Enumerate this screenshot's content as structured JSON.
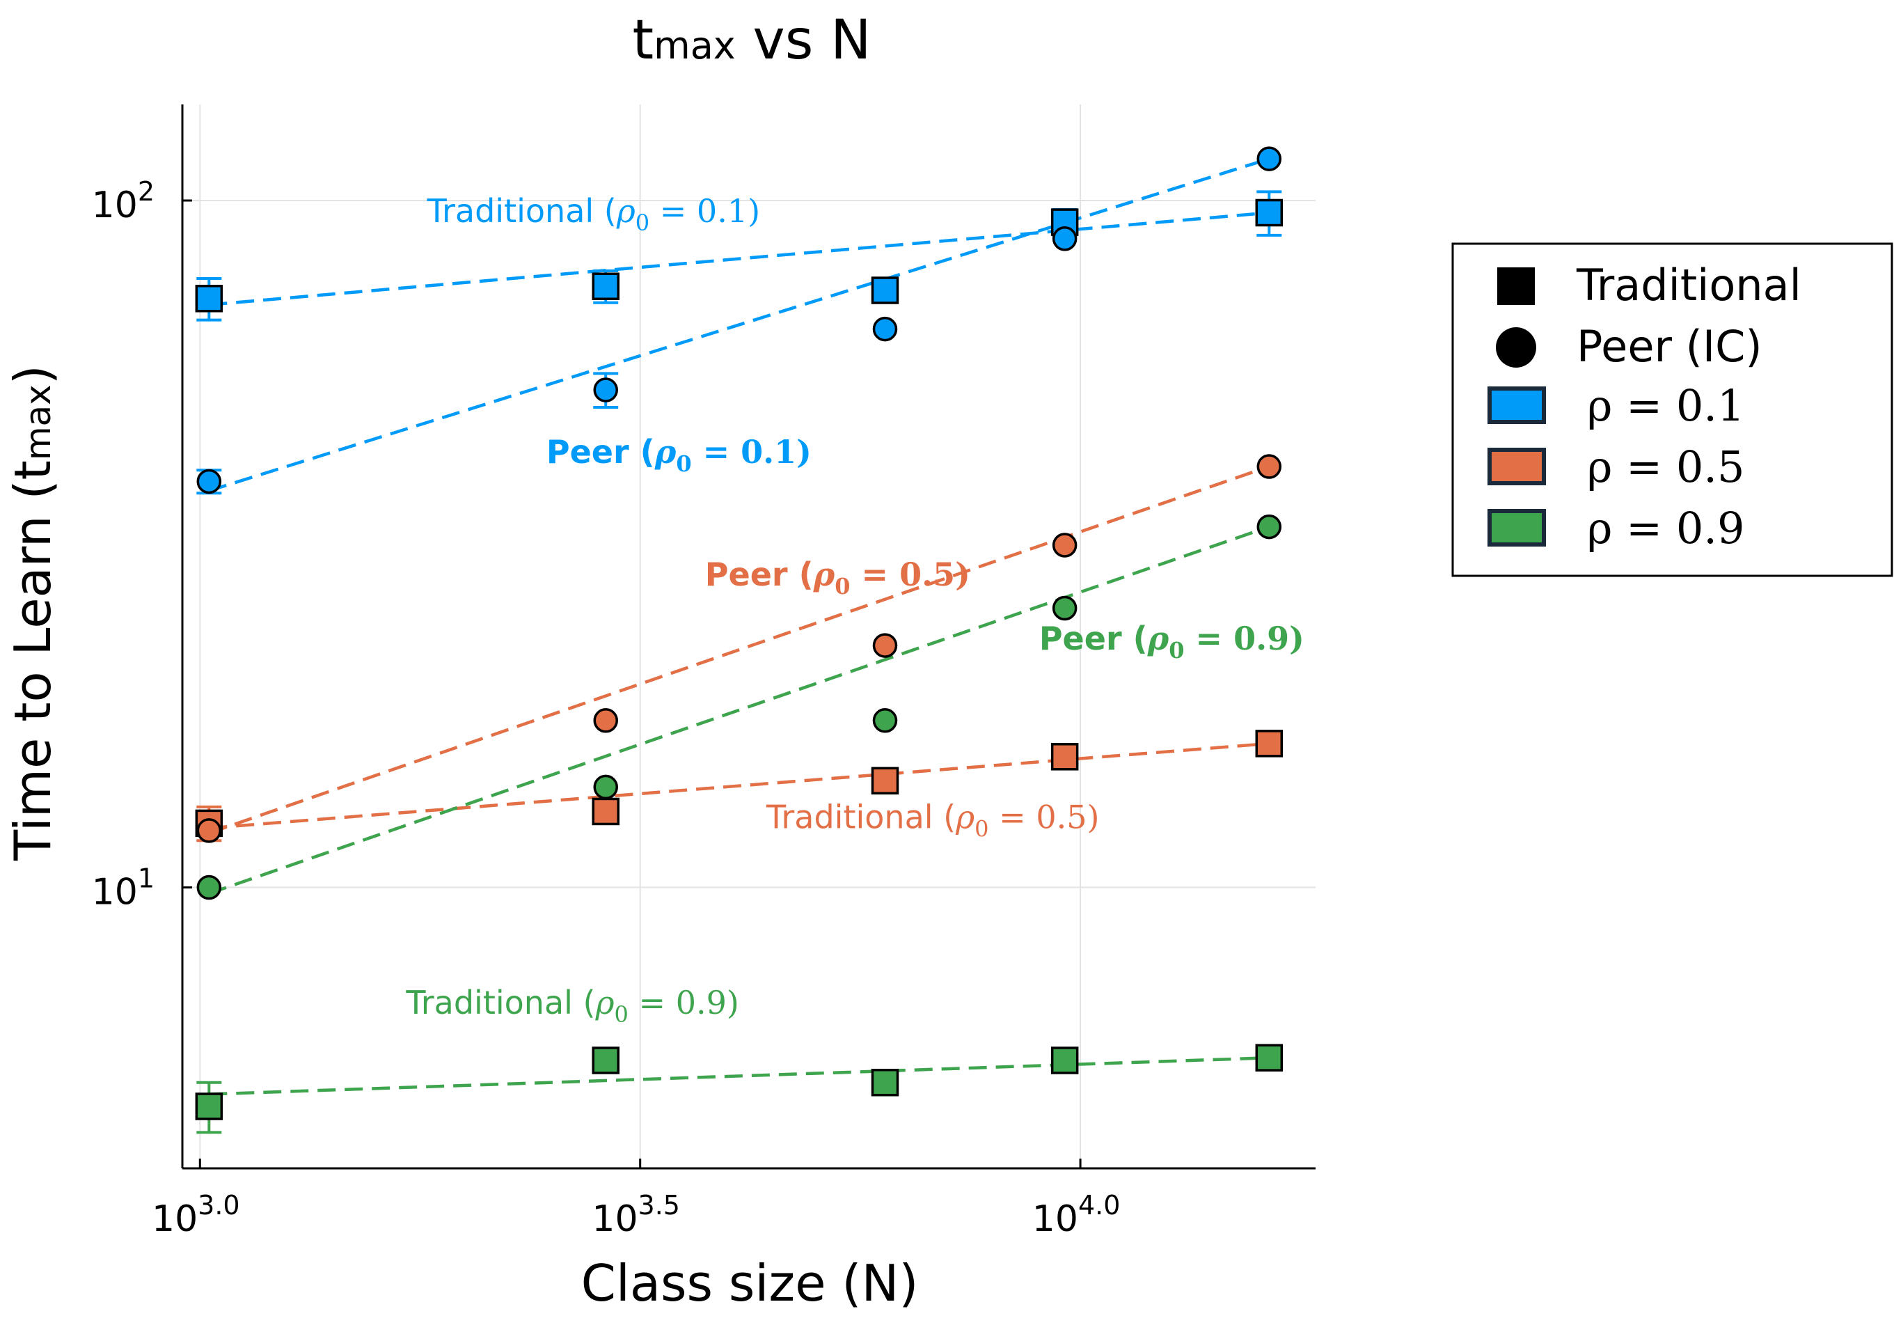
{
  "chart_data": {
    "type": "scatter",
    "title_main": "t",
    "title_sub": "max",
    "title_rest": " vs N",
    "xlabel": "Class size (N)",
    "ylabel_main": "Time to Learn (t",
    "ylabel_sub": "max",
    "ylabel_end": ")",
    "x_scale": "log10",
    "y_scale": "log10",
    "xlim": [
      955,
      18500
    ],
    "ylim": [
      3.9,
      138
    ],
    "x_ticks": [
      {
        "value": 1000,
        "base": "10",
        "exp": "3.0"
      },
      {
        "value": 3162.28,
        "base": "10",
        "exp": "3.5"
      },
      {
        "value": 10000,
        "base": "10",
        "exp": "4.0"
      }
    ],
    "y_ticks": [
      {
        "value": 10,
        "base": "10",
        "exp": "1"
      },
      {
        "value": 100,
        "base": "10",
        "exp": "2"
      }
    ],
    "grid": true,
    "legend_position": "right",
    "legend": {
      "markers": [
        {
          "shape": "square",
          "label": "Traditional"
        },
        {
          "shape": "circle",
          "label": "Peer (IC)"
        }
      ],
      "colors": [
        {
          "color": "#009AF9",
          "label": "ρ = 0.1"
        },
        {
          "color": "#E26F46",
          "label": "ρ = 0.5"
        },
        {
          "color": "#3EA44E",
          "label": "ρ = 0.9"
        }
      ]
    },
    "series": [
      {
        "name": "Traditional (ρ₀ = 0.1)",
        "marker": "square",
        "color": "#009AF9",
        "x": [
          1024,
          2890,
          6000,
          9600,
          16384
        ],
        "y": [
          72,
          75,
          74,
          93,
          96
        ],
        "err": [
          5,
          4,
          2,
          4,
          7
        ],
        "fit": {
          "x": [
            1024,
            16384
          ],
          "y": [
            70.5,
            96
          ]
        },
        "annotation": {
          "pre": "Traditional (",
          "sym": "ρ",
          "sub": "0",
          "post": " = 0.1)",
          "bold": false,
          "x": 2800,
          "y": 93
        }
      },
      {
        "name": "Peer (ρ₀ = 0.1)",
        "marker": "circle",
        "color": "#009AF9",
        "x": [
          1024,
          2890,
          6000,
          9600,
          16384
        ],
        "y": [
          39,
          53,
          65,
          88,
          115
        ],
        "err": [
          1.5,
          3,
          0,
          0,
          0
        ],
        "fit": {
          "x": [
            1024,
            16384
          ],
          "y": [
            37.8,
            115
          ]
        },
        "annotation": {
          "pre": "Peer (",
          "sym": "ρ",
          "sub": "0",
          "post": " = 0.1)",
          "bold": true,
          "x": 3500,
          "y": 41.5
        }
      },
      {
        "name": "Traditional (ρ₀ = 0.5)",
        "marker": "square",
        "color": "#E26F46",
        "x": [
          1024,
          2890,
          6000,
          9600,
          16384
        ],
        "y": [
          12.4,
          12.9,
          14.3,
          15.5,
          16.2
        ],
        "err": [
          0.7,
          0,
          0,
          0,
          0
        ],
        "fit": {
          "x": [
            1024,
            16384
          ],
          "y": [
            12.2,
            16.2
          ]
        },
        "annotation": {
          "pre": "Traditional (",
          "sym": "ρ",
          "sub": "0",
          "post": " = 0.5)",
          "bold": false,
          "x": 6800,
          "y": 12.2
        }
      },
      {
        "name": "Peer (ρ₀ = 0.5)",
        "marker": "circle",
        "color": "#E26F46",
        "x": [
          1024,
          2890,
          6000,
          9600,
          16384
        ],
        "y": [
          12.1,
          17.5,
          22.5,
          31.5,
          41
        ],
        "err": [
          0,
          0,
          0,
          0,
          0
        ],
        "fit": {
          "x": [
            1024,
            16384
          ],
          "y": [
            12.0,
            41
          ]
        },
        "annotation": {
          "pre": "Peer (",
          "sym": "ρ",
          "sub": "0",
          "post": " = 0.5)",
          "bold": true,
          "x": 5300,
          "y": 27.5
        }
      },
      {
        "name": "Traditional (ρ₀ = 0.9)",
        "marker": "square",
        "color": "#3EA44E",
        "x": [
          1024,
          2890,
          6000,
          9600,
          16384
        ],
        "y": [
          4.8,
          5.6,
          5.2,
          5.6,
          5.65
        ],
        "err": [
          0.4,
          0,
          0,
          0,
          0
        ],
        "fit": {
          "x": [
            1024,
            16384
          ],
          "y": [
            5.0,
            5.65
          ]
        },
        "annotation": {
          "pre": "Traditional (",
          "sym": "ρ",
          "sub": "0",
          "post": " = 0.9)",
          "bold": false,
          "x": 2650,
          "y": 6.55
        }
      },
      {
        "name": "Peer (ρ₀ = 0.9)",
        "marker": "circle",
        "color": "#3EA44E",
        "x": [
          1024,
          2890,
          6000,
          9600,
          16384
        ],
        "y": [
          10,
          14,
          17.5,
          25.5,
          33.5
        ],
        "err": [
          0,
          0,
          0,
          0,
          0
        ],
        "fit": {
          "x": [
            1024,
            16384
          ],
          "y": [
            9.8,
            33.5
          ]
        },
        "annotation": {
          "pre": "Peer (",
          "sym": "ρ",
          "sub": "0",
          "post": " = 0.9)",
          "bold": true,
          "x": 12700,
          "y": 22.2
        }
      }
    ]
  }
}
